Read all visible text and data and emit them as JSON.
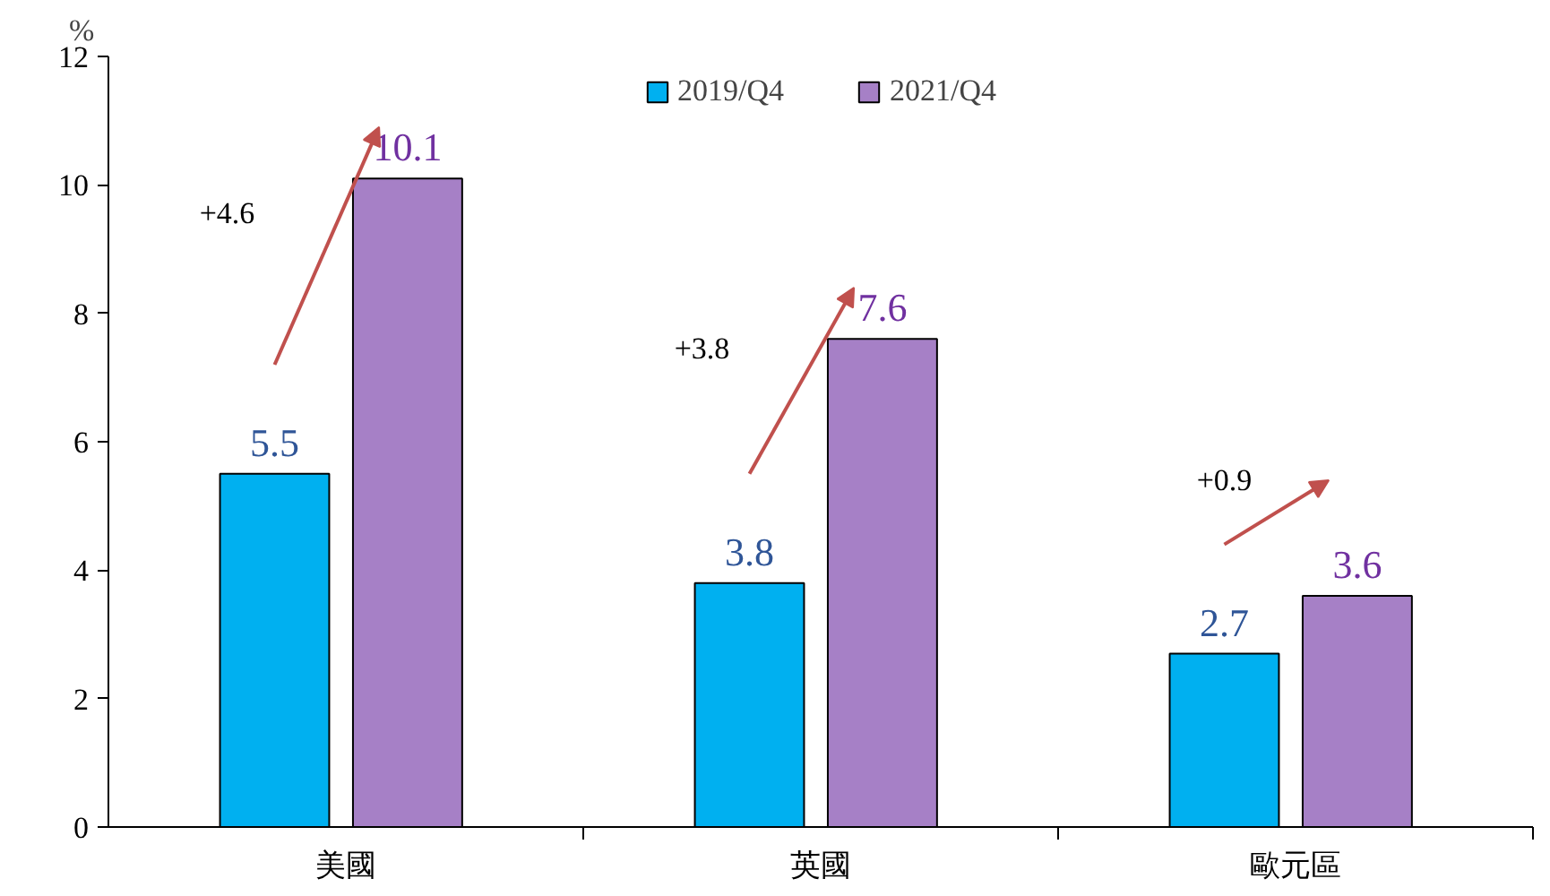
{
  "chart_data": {
    "type": "bar",
    "ylabel": "%",
    "categories": [
      "美國",
      "英國",
      "歐元區"
    ],
    "series": [
      {
        "name": "2019/Q4",
        "color": "#00b0f0",
        "values": [
          5.5,
          3.8,
          2.7
        ]
      },
      {
        "name": "2021/Q4",
        "color": "#a680c6",
        "values": [
          10.1,
          7.6,
          3.6
        ]
      }
    ],
    "ylim": [
      0,
      12
    ],
    "yticks": [
      0,
      2,
      4,
      6,
      8,
      10,
      12
    ],
    "grid": false,
    "legend": "top",
    "data_labels": true,
    "annotations": [
      "+4.6",
      "+3.8",
      "+0.9"
    ]
  }
}
